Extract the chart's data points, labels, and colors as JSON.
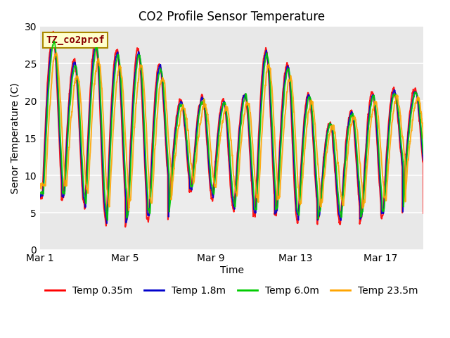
{
  "title": "CO2 Profile Sensor Temperature",
  "ylabel": "Senor Temperature (C)",
  "xlabel": "Time",
  "annotation_label": "TZ_co2prof",
  "annotation_bg": "#FFFFCC",
  "annotation_border": "#CC0000",
  "ylim": [
    0,
    30
  ],
  "yticks": [
    0,
    5,
    10,
    15,
    20,
    25,
    30
  ],
  "bg_color": "#E8E8E8",
  "fig_bg": "#FFFFFF",
  "xtick_labels": [
    "Mar 1",
    "Mar 5",
    "Mar 9",
    "Mar 13",
    "Mar 17"
  ],
  "xtick_positions": [
    0,
    4,
    8,
    12,
    16
  ],
  "colors": {
    "T035": "#FF0000",
    "T18": "#0000CC",
    "T60": "#00CC00",
    "T235": "#FFA500"
  },
  "legend_labels": [
    "Temp 0.35m",
    "Temp 1.8m",
    "Temp 6.0m",
    "Temp 23.5m"
  ],
  "line_width": 1.4,
  "num_days": 18,
  "pts_per_day": 144
}
